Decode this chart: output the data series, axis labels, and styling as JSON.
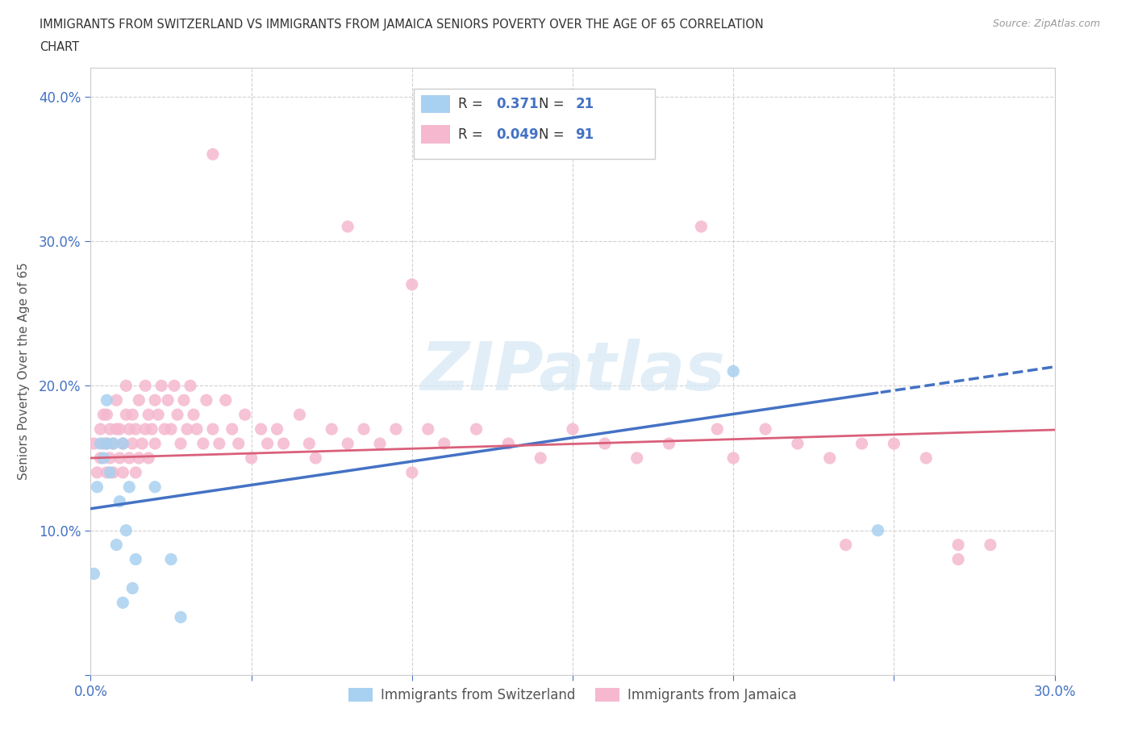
{
  "title_line1": "IMMIGRANTS FROM SWITZERLAND VS IMMIGRANTS FROM JAMAICA SENIORS POVERTY OVER THE AGE OF 65 CORRELATION",
  "title_line2": "CHART",
  "source": "Source: ZipAtlas.com",
  "ylabel": "Seniors Poverty Over the Age of 65",
  "xlim": [
    0.0,
    0.3
  ],
  "ylim": [
    0.0,
    0.42
  ],
  "xticks": [
    0.0,
    0.05,
    0.1,
    0.15,
    0.2,
    0.25,
    0.3
  ],
  "yticks": [
    0.0,
    0.1,
    0.2,
    0.3,
    0.4
  ],
  "swiss_R": "0.371",
  "swiss_N": "21",
  "jamaica_R": "0.049",
  "jamaica_N": "91",
  "swiss_color": "#a8d0f0",
  "jamaica_color": "#f5b8ce",
  "swiss_line_color": "#4472c4",
  "jamaica_line_color": "#d9607a",
  "watermark_color": "#d5e8f5",
  "swiss_x": [
    0.001,
    0.002,
    0.003,
    0.004,
    0.005,
    0.005,
    0.006,
    0.007,
    0.008,
    0.009,
    0.01,
    0.01,
    0.011,
    0.012,
    0.013,
    0.014,
    0.02,
    0.025,
    0.028,
    0.2,
    0.245
  ],
  "swiss_y": [
    0.07,
    0.13,
    0.16,
    0.15,
    0.16,
    0.19,
    0.14,
    0.16,
    0.09,
    0.12,
    0.16,
    0.05,
    0.1,
    0.13,
    0.06,
    0.08,
    0.13,
    0.08,
    0.04,
    0.21,
    0.1
  ],
  "jamaica_x": [
    0.001,
    0.002,
    0.003,
    0.003,
    0.004,
    0.004,
    0.005,
    0.005,
    0.005,
    0.006,
    0.006,
    0.007,
    0.007,
    0.008,
    0.008,
    0.009,
    0.009,
    0.01,
    0.01,
    0.011,
    0.011,
    0.012,
    0.012,
    0.013,
    0.013,
    0.014,
    0.014,
    0.015,
    0.015,
    0.016,
    0.017,
    0.017,
    0.018,
    0.018,
    0.019,
    0.02,
    0.02,
    0.021,
    0.022,
    0.023,
    0.024,
    0.025,
    0.026,
    0.027,
    0.028,
    0.029,
    0.03,
    0.031,
    0.032,
    0.033,
    0.035,
    0.036,
    0.038,
    0.04,
    0.042,
    0.044,
    0.046,
    0.048,
    0.05,
    0.053,
    0.055,
    0.058,
    0.06,
    0.065,
    0.068,
    0.07,
    0.075,
    0.08,
    0.085,
    0.09,
    0.095,
    0.1,
    0.105,
    0.11,
    0.12,
    0.13,
    0.14,
    0.15,
    0.16,
    0.17,
    0.18,
    0.195,
    0.2,
    0.21,
    0.22,
    0.23,
    0.24,
    0.25,
    0.26,
    0.27,
    0.28
  ],
  "jamaica_y": [
    0.16,
    0.14,
    0.15,
    0.17,
    0.16,
    0.18,
    0.14,
    0.16,
    0.18,
    0.15,
    0.17,
    0.14,
    0.16,
    0.17,
    0.19,
    0.15,
    0.17,
    0.14,
    0.16,
    0.18,
    0.2,
    0.15,
    0.17,
    0.16,
    0.18,
    0.14,
    0.17,
    0.15,
    0.19,
    0.16,
    0.17,
    0.2,
    0.15,
    0.18,
    0.17,
    0.16,
    0.19,
    0.18,
    0.2,
    0.17,
    0.19,
    0.17,
    0.2,
    0.18,
    0.16,
    0.19,
    0.17,
    0.2,
    0.18,
    0.17,
    0.16,
    0.19,
    0.17,
    0.16,
    0.19,
    0.17,
    0.16,
    0.18,
    0.15,
    0.17,
    0.16,
    0.17,
    0.16,
    0.18,
    0.16,
    0.15,
    0.17,
    0.16,
    0.17,
    0.16,
    0.17,
    0.14,
    0.17,
    0.16,
    0.17,
    0.16,
    0.15,
    0.17,
    0.16,
    0.15,
    0.16,
    0.17,
    0.15,
    0.17,
    0.16,
    0.15,
    0.16,
    0.16,
    0.15,
    0.09,
    0.09
  ],
  "jamaica_extra_x": [
    0.038,
    0.08,
    0.1,
    0.19,
    0.235,
    0.27
  ],
  "jamaica_extra_y": [
    0.36,
    0.31,
    0.27,
    0.31,
    0.09,
    0.08
  ]
}
